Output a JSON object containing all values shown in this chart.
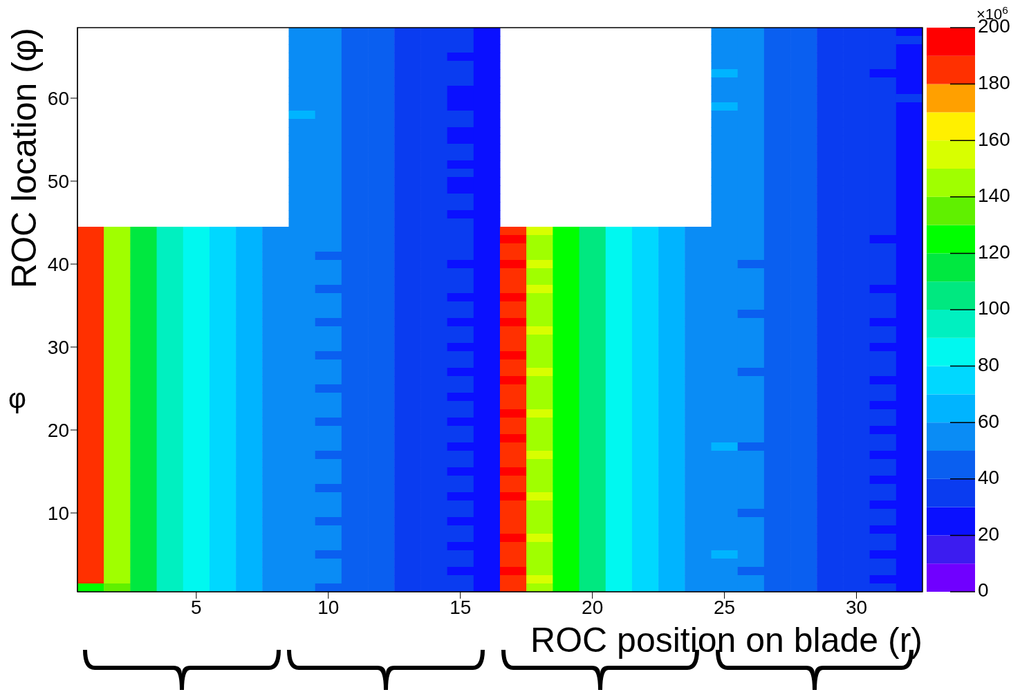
{
  "chart_data": {
    "type": "heatmap",
    "xlabel": "ROC position on blade (r)",
    "ylabel": "ROC location (φ)",
    "clabel": "×10$^{6}$",
    "annotations": [
      "φ"
    ],
    "clim": [
      0,
      200
    ],
    "cticks": [
      0,
      20,
      40,
      60,
      80,
      100,
      120,
      140,
      160,
      180,
      200
    ],
    "categories": [
      null,
      null,
      null,
      null,
      "5",
      null,
      null,
      null,
      null,
      "10",
      null,
      null,
      null,
      null,
      "15",
      null,
      null,
      null,
      null,
      "20",
      null,
      null,
      null,
      null,
      "25",
      null,
      null,
      null,
      null,
      "30",
      null,
      null
    ],
    "y_categories": [
      null,
      null,
      null,
      null,
      null,
      null,
      null,
      null,
      "60",
      null,
      null,
      null,
      null,
      null,
      null,
      null,
      null,
      null,
      "50",
      null,
      null,
      null,
      null,
      null,
      null,
      null,
      null,
      null,
      "40",
      null,
      null,
      null,
      null,
      null,
      null,
      null,
      null,
      null,
      "30",
      null,
      null,
      null,
      null,
      null,
      null,
      null,
      null,
      null,
      "20",
      null,
      null,
      null,
      null,
      null,
      null,
      null,
      null,
      null,
      "10",
      null,
      null,
      null,
      null,
      null,
      null,
      null,
      null,
      null
    ],
    "cells": [
      [
        null,
        null,
        null,
        null,
        null,
        null,
        null,
        null,
        52,
        52,
        46,
        43,
        36,
        33,
        31,
        22,
        null,
        null,
        null,
        null,
        null,
        null,
        null,
        null,
        53,
        50,
        46,
        42,
        36,
        33,
        31,
        29
      ],
      [
        null,
        null,
        null,
        null,
        null,
        null,
        null,
        null,
        53,
        51,
        47,
        44,
        38,
        34,
        30,
        22,
        null,
        null,
        null,
        null,
        null,
        null,
        null,
        null,
        54,
        52,
        47,
        43,
        37,
        34,
        32,
        31
      ],
      [
        null,
        null,
        null,
        null,
        null,
        null,
        null,
        null,
        54,
        50,
        48,
        45,
        39,
        35,
        31,
        23,
        null,
        null,
        null,
        null,
        null,
        null,
        null,
        null,
        55,
        51,
        48,
        44,
        36,
        33,
        30,
        29
      ],
      [
        null,
        null,
        null,
        null,
        null,
        null,
        null,
        null,
        53,
        51,
        47,
        44,
        37,
        34,
        28,
        21,
        null,
        null,
        null,
        null,
        null,
        null,
        null,
        null,
        53,
        50,
        47,
        42,
        37,
        34,
        31,
        28
      ],
      [
        null,
        null,
        null,
        null,
        null,
        null,
        null,
        null,
        52,
        52,
        46,
        43,
        38,
        33,
        30,
        22,
        null,
        null,
        null,
        null,
        null,
        null,
        null,
        null,
        54,
        51,
        46,
        43,
        36,
        33,
        30,
        27
      ],
      [
        null,
        null,
        null,
        null,
        null,
        null,
        null,
        null,
        55,
        50,
        47,
        44,
        37,
        35,
        31,
        23,
        null,
        null,
        null,
        null,
        null,
        null,
        null,
        null,
        62,
        52,
        47,
        44,
        37,
        34,
        29,
        26
      ],
      [
        null,
        null,
        null,
        null,
        null,
        null,
        null,
        null,
        53,
        51,
        48,
        45,
        38,
        34,
        30,
        22,
        null,
        null,
        null,
        null,
        null,
        null,
        null,
        null,
        54,
        50,
        48,
        42,
        36,
        34,
        31,
        28
      ],
      [
        null,
        null,
        null,
        null,
        null,
        null,
        null,
        null,
        52,
        50,
        46,
        43,
        39,
        33,
        28,
        21,
        null,
        null,
        null,
        null,
        null,
        null,
        null,
        null,
        53,
        51,
        47,
        43,
        37,
        33,
        30,
        29
      ],
      [
        null,
        null,
        null,
        null,
        null,
        null,
        null,
        null,
        54,
        52,
        47,
        44,
        37,
        34,
        29,
        22,
        null,
        null,
        null,
        null,
        null,
        null,
        null,
        null,
        55,
        50,
        46,
        44,
        36,
        34,
        31,
        31
      ],
      [
        null,
        null,
        null,
        null,
        null,
        null,
        null,
        null,
        53,
        51,
        48,
        45,
        38,
        32,
        28,
        23,
        null,
        null,
        null,
        null,
        null,
        null,
        null,
        null,
        62,
        52,
        47,
        43,
        37,
        33,
        30,
        28
      ],
      [
        null,
        null,
        null,
        null,
        null,
        null,
        null,
        null,
        61,
        50,
        47,
        43,
        37,
        34,
        30,
        22,
        null,
        null,
        null,
        null,
        null,
        null,
        null,
        null,
        54,
        51,
        48,
        42,
        36,
        34,
        31,
        29
      ],
      [
        null,
        null,
        null,
        null,
        null,
        null,
        null,
        null,
        52,
        51,
        46,
        44,
        38,
        33,
        31,
        23,
        null,
        null,
        null,
        null,
        null,
        null,
        null,
        null,
        53,
        50,
        47,
        44,
        37,
        33,
        30,
        28
      ],
      [
        null,
        null,
        null,
        null,
        null,
        null,
        null,
        null,
        54,
        52,
        48,
        45,
        37,
        35,
        29,
        22,
        null,
        null,
        null,
        null,
        null,
        null,
        null,
        null,
        55,
        52,
        46,
        43,
        36,
        34,
        32,
        29
      ],
      [
        null,
        null,
        null,
        null,
        null,
        null,
        null,
        null,
        53,
        50,
        47,
        43,
        39,
        34,
        28,
        21,
        null,
        null,
        null,
        null,
        null,
        null,
        null,
        null,
        54,
        51,
        47,
        42,
        37,
        33,
        30,
        27
      ],
      [
        null,
        null,
        null,
        null,
        null,
        null,
        null,
        null,
        52,
        51,
        46,
        44,
        38,
        33,
        30,
        22,
        null,
        null,
        null,
        null,
        null,
        null,
        null,
        null,
        53,
        50,
        48,
        44,
        36,
        34,
        31,
        29
      ],
      [
        null,
        null,
        null,
        null,
        null,
        null,
        null,
        null,
        54,
        52,
        48,
        45,
        37,
        34,
        31,
        23,
        null,
        null,
        null,
        null,
        null,
        null,
        null,
        null,
        55,
        51,
        47,
        43,
        37,
        33,
        30,
        28
      ],
      [
        null,
        null,
        null,
        null,
        null,
        null,
        null,
        null,
        53,
        50,
        47,
        43,
        38,
        35,
        29,
        22,
        null,
        null,
        null,
        null,
        null,
        null,
        null,
        null,
        54,
        52,
        46,
        42,
        36,
        34,
        31,
        26
      ],
      [
        null,
        null,
        null,
        null,
        null,
        null,
        null,
        null,
        52,
        51,
        46,
        44,
        37,
        33,
        30,
        21,
        null,
        null,
        null,
        null,
        null,
        null,
        null,
        null,
        53,
        50,
        47,
        44,
        37,
        33,
        30,
        29
      ],
      [
        null,
        null,
        null,
        null,
        null,
        null,
        null,
        null,
        54,
        52,
        48,
        45,
        39,
        34,
        28,
        22,
        null,
        null,
        null,
        null,
        null,
        null,
        null,
        null,
        55,
        51,
        48,
        43,
        36,
        34,
        32,
        28
      ],
      [
        null,
        null,
        null,
        null,
        null,
        null,
        null,
        null,
        53,
        50,
        47,
        43,
        38,
        32,
        29,
        23,
        null,
        null,
        null,
        null,
        null,
        null,
        null,
        null,
        54,
        50,
        47,
        42,
        37,
        33,
        30,
        29
      ],
      [
        null,
        null,
        null,
        null,
        null,
        null,
        null,
        null,
        52,
        51,
        46,
        44,
        37,
        34,
        31,
        22,
        null,
        null,
        null,
        null,
        null,
        null,
        null,
        null,
        53,
        52,
        46,
        44,
        36,
        34,
        31,
        28
      ],
      [
        null,
        null,
        null,
        null,
        null,
        null,
        null,
        null,
        54,
        52,
        48,
        45,
        38,
        33,
        30,
        21,
        null,
        null,
        null,
        null,
        null,
        null,
        null,
        null,
        55,
        51,
        47,
        43,
        37,
        33,
        30,
        27
      ],
      [
        null,
        null,
        null,
        null,
        null,
        null,
        null,
        null,
        53,
        50,
        47,
        43,
        39,
        35,
        29,
        22,
        null,
        null,
        null,
        null,
        null,
        null,
        null,
        null,
        54,
        50,
        48,
        42,
        36,
        34,
        31,
        29
      ],
      [
        null,
        null,
        null,
        null,
        null,
        null,
        null,
        null,
        58,
        51,
        46,
        44,
        37,
        34,
        30,
        23,
        null,
        null,
        null,
        null,
        null,
        null,
        null,
        null,
        53,
        51,
        47,
        44,
        37,
        33,
        30,
        28
      ],
      [
        183,
        142,
        112,
        95,
        82,
        72,
        62,
        55,
        53,
        50,
        47,
        43,
        37,
        33,
        30,
        24,
        186,
        150,
        122,
        104,
        86,
        76,
        66,
        58,
        54,
        50,
        46,
        41,
        36,
        33,
        30,
        26
      ],
      [
        186,
        146,
        110,
        96,
        80,
        71,
        63,
        54,
        52,
        51,
        46,
        42,
        38,
        34,
        31,
        23,
        190,
        146,
        120,
        105,
        87,
        75,
        65,
        57,
        53,
        51,
        47,
        42,
        35,
        34,
        29,
        25
      ],
      [
        184,
        148,
        113,
        94,
        83,
        73,
        61,
        55,
        51,
        50,
        45,
        41,
        37,
        33,
        30,
        22,
        183,
        149,
        123,
        103,
        85,
        77,
        66,
        58,
        55,
        50,
        46,
        40,
        36,
        33,
        30,
        27
      ],
      [
        187,
        144,
        111,
        95,
        81,
        72,
        62,
        56,
        52,
        49,
        46,
        42,
        36,
        34,
        31,
        24,
        188,
        147,
        121,
        104,
        86,
        76,
        64,
        59,
        54,
        52,
        45,
        41,
        37,
        32,
        31,
        26
      ],
      [
        185,
        146,
        112,
        97,
        82,
        70,
        63,
        54,
        53,
        50,
        47,
        43,
        37,
        33,
        29,
        23,
        192,
        150,
        122,
        106,
        84,
        75,
        66,
        57,
        53,
        49,
        46,
        42,
        36,
        33,
        30,
        25
      ],
      [
        182,
        143,
        114,
        95,
        84,
        72,
        61,
        55,
        52,
        51,
        45,
        42,
        38,
        35,
        30,
        22,
        185,
        148,
        120,
        104,
        87,
        77,
        65,
        58,
        54,
        50,
        47,
        41,
        35,
        34,
        31,
        26
      ],
      [
        188,
        147,
        110,
        94,
        81,
        73,
        62,
        56,
        51,
        50,
        46,
        41,
        37,
        33,
        31,
        24,
        189,
        146,
        123,
        103,
        86,
        74,
        66,
        57,
        55,
        51,
        46,
        40,
        36,
        32,
        30,
        27
      ],
      [
        184,
        145,
        112,
        96,
        80,
        71,
        63,
        54,
        53,
        49,
        47,
        43,
        36,
        34,
        30,
        23,
        187,
        151,
        121,
        105,
        85,
        76,
        64,
        59,
        53,
        50,
        45,
        42,
        37,
        33,
        29,
        25
      ],
      [
        186,
        149,
        111,
        95,
        83,
        72,
        61,
        55,
        52,
        50,
        46,
        42,
        38,
        33,
        28,
        22,
        191,
        147,
        122,
        104,
        86,
        75,
        65,
        58,
        54,
        52,
        47,
        41,
        36,
        34,
        30,
        26
      ],
      [
        183,
        144,
        113,
        97,
        82,
        70,
        62,
        56,
        51,
        51,
        45,
        41,
        37,
        35,
        31,
        24,
        184,
        149,
        120,
        106,
        87,
        77,
        66,
        57,
        53,
        50,
        46,
        40,
        35,
        33,
        31,
        27
      ],
      [
        187,
        146,
        110,
        94,
        81,
        73,
        63,
        54,
        59,
        50,
        47,
        43,
        36,
        33,
        30,
        23,
        188,
        148,
        123,
        103,
        85,
        76,
        64,
        58,
        55,
        49,
        45,
        42,
        37,
        32,
        30,
        25
      ],
      [
        185,
        147,
        112,
        96,
        84,
        71,
        61,
        55,
        52,
        49,
        46,
        42,
        38,
        34,
        29,
        22,
        190,
        146,
        121,
        104,
        86,
        74,
        65,
        59,
        54,
        51,
        47,
        41,
        36,
        33,
        29,
        26
      ],
      [
        184,
        143,
        114,
        95,
        80,
        72,
        62,
        56,
        53,
        50,
        45,
        41,
        37,
        33,
        31,
        24,
        186,
        150,
        122,
        105,
        84,
        75,
        66,
        57,
        53,
        50,
        46,
        40,
        35,
        34,
        31,
        27
      ],
      [
        188,
        148,
        111,
        97,
        82,
        70,
        63,
        54,
        51,
        51,
        47,
        43,
        36,
        35,
        30,
        23,
        183,
        147,
        120,
        103,
        87,
        77,
        64,
        58,
        55,
        52,
        45,
        42,
        37,
        32,
        30,
        25
      ],
      [
        182,
        145,
        112,
        94,
        83,
        73,
        61,
        55,
        52,
        50,
        46,
        42,
        38,
        33,
        28,
        22,
        189,
        149,
        123,
        104,
        86,
        76,
        65,
        59,
        54,
        50,
        47,
        41,
        36,
        33,
        29,
        26
      ],
      [
        186,
        146,
        113,
        96,
        81,
        71,
        62,
        56,
        53,
        49,
        45,
        41,
        37,
        34,
        31,
        24,
        191,
        146,
        121,
        106,
        85,
        74,
        66,
        57,
        53,
        51,
        46,
        40,
        35,
        34,
        30,
        27
      ],
      [
        185,
        144,
        110,
        95,
        80,
        72,
        63,
        54,
        52,
        50,
        47,
        43,
        36,
        33,
        30,
        23,
        185,
        148,
        122,
        103,
        86,
        75,
        64,
        58,
        54,
        50,
        45,
        42,
        37,
        32,
        31,
        25
      ],
      [
        187,
        147,
        112,
        97,
        84,
        70,
        61,
        55,
        51,
        51,
        46,
        42,
        38,
        35,
        29,
        22,
        188,
        150,
        120,
        105,
        87,
        77,
        65,
        59,
        55,
        49,
        47,
        41,
        36,
        33,
        30,
        26
      ],
      [
        183,
        145,
        114,
        94,
        82,
        73,
        62,
        56,
        53,
        50,
        45,
        41,
        37,
        33,
        31,
        24,
        190,
        147,
        123,
        104,
        84,
        76,
        66,
        57,
        53,
        52,
        46,
        40,
        35,
        34,
        29,
        27
      ],
      [
        186,
        143,
        111,
        96,
        81,
        71,
        63,
        54,
        52,
        49,
        47,
        43,
        36,
        34,
        30,
        23,
        184,
        149,
        121,
        103,
        86,
        74,
        64,
        58,
        54,
        50,
        45,
        42,
        37,
        33,
        31,
        25
      ],
      [
        184,
        148,
        113,
        95,
        83,
        72,
        61,
        55,
        58,
        50,
        46,
        42,
        38,
        33,
        28,
        22,
        189,
        146,
        122,
        106,
        85,
        75,
        65,
        59,
        55,
        51,
        47,
        41,
        36,
        32,
        30,
        26
      ],
      [
        188,
        146,
        110,
        97,
        80,
        70,
        62,
        56,
        51,
        51,
        45,
        41,
        37,
        35,
        31,
        24,
        187,
        148,
        120,
        104,
        87,
        77,
        66,
        57,
        53,
        50,
        46,
        40,
        35,
        33,
        29,
        27
      ],
      [
        185,
        144,
        112,
        94,
        82,
        73,
        63,
        54,
        53,
        50,
        47,
        43,
        36,
        33,
        30,
        23,
        191,
        150,
        123,
        105,
        86,
        76,
        64,
        58,
        54,
        52,
        45,
        42,
        37,
        34,
        31,
        25
      ],
      [
        182,
        147,
        114,
        96,
        84,
        71,
        61,
        55,
        52,
        49,
        46,
        42,
        38,
        34,
        29,
        22,
        183,
        147,
        121,
        103,
        84,
        74,
        65,
        59,
        55,
        50,
        47,
        41,
        36,
        33,
        30,
        26
      ],
      [
        187,
        145,
        111,
        95,
        81,
        72,
        62,
        56,
        51,
        50,
        45,
        41,
        37,
        33,
        31,
        24,
        188,
        149,
        122,
        104,
        85,
        75,
        66,
        57,
        53,
        51,
        46,
        40,
        35,
        32,
        29,
        27
      ],
      [
        184,
        146,
        113,
        97,
        80,
        70,
        63,
        54,
        53,
        51,
        47,
        43,
        36,
        35,
        30,
        23,
        190,
        146,
        120,
        106,
        87,
        77,
        64,
        58,
        54,
        50,
        45,
        42,
        37,
        33,
        31,
        25
      ],
      [
        186,
        143,
        110,
        94,
        83,
        73,
        61,
        55,
        52,
        50,
        46,
        42,
        38,
        33,
        28,
        22,
        185,
        148,
        123,
        103,
        86,
        76,
        65,
        59,
        62,
        49,
        47,
        41,
        36,
        34,
        30,
        26
      ],
      [
        185,
        148,
        112,
        96,
        82,
        71,
        62,
        56,
        51,
        49,
        45,
        41,
        37,
        34,
        31,
        24,
        189,
        150,
        121,
        105,
        84,
        74,
        66,
        57,
        55,
        52,
        46,
        40,
        35,
        32,
        29,
        27
      ],
      [
        183,
        144,
        114,
        95,
        81,
        72,
        63,
        54,
        53,
        50,
        47,
        43,
        36,
        33,
        30,
        23,
        187,
        147,
        122,
        104,
        86,
        75,
        64,
        58,
        54,
        50,
        45,
        42,
        37,
        33,
        31,
        25
      ],
      [
        188,
        147,
        111,
        97,
        84,
        70,
        61,
        55,
        52,
        51,
        46,
        42,
        38,
        35,
        29,
        22,
        191,
        149,
        120,
        103,
        87,
        77,
        65,
        59,
        53,
        51,
        47,
        41,
        36,
        34,
        30,
        26
      ],
      [
        184,
        145,
        113,
        94,
        80,
        73,
        62,
        56,
        58,
        50,
        45,
        41,
        37,
        33,
        31,
        24,
        184,
        146,
        123,
        106,
        85,
        76,
        66,
        57,
        55,
        50,
        46,
        40,
        35,
        33,
        29,
        27
      ],
      [
        187,
        146,
        110,
        96,
        83,
        71,
        63,
        54,
        51,
        49,
        47,
        43,
        36,
        34,
        30,
        23,
        188,
        148,
        121,
        104,
        86,
        74,
        64,
        58,
        54,
        52,
        45,
        42,
        37,
        32,
        31,
        25
      ],
      [
        185,
        143,
        112,
        95,
        82,
        72,
        61,
        55,
        53,
        50,
        46,
        42,
        38,
        33,
        28,
        22,
        190,
        150,
        122,
        105,
        84,
        75,
        65,
        59,
        53,
        50,
        47,
        41,
        36,
        33,
        30,
        26
      ],
      [
        182,
        148,
        114,
        97,
        81,
        70,
        62,
        56,
        52,
        51,
        45,
        41,
        37,
        35,
        31,
        24,
        186,
        147,
        120,
        103,
        87,
        77,
        66,
        57,
        55,
        51,
        46,
        40,
        35,
        34,
        29,
        27
      ],
      [
        186,
        144,
        111,
        94,
        80,
        73,
        63,
        54,
        51,
        50,
        47,
        43,
        36,
        33,
        30,
        23,
        189,
        149,
        123,
        104,
        86,
        76,
        64,
        58,
        54,
        49,
        45,
        42,
        37,
        32,
        31,
        25
      ],
      [
        184,
        147,
        113,
        96,
        84,
        71,
        61,
        55,
        53,
        49,
        46,
        42,
        38,
        34,
        29,
        22,
        183,
        146,
        121,
        106,
        85,
        74,
        65,
        59,
        53,
        52,
        47,
        41,
        36,
        33,
        30,
        26
      ],
      [
        188,
        145,
        110,
        95,
        82,
        72,
        62,
        56,
        52,
        50,
        45,
        41,
        37,
        33,
        31,
        24,
        188,
        148,
        122,
        103,
        84,
        75,
        66,
        57,
        55,
        50,
        46,
        40,
        35,
        34,
        29,
        27
      ],
      [
        185,
        146,
        112,
        97,
        81,
        70,
        63,
        54,
        51,
        51,
        47,
        43,
        36,
        35,
        30,
        23,
        191,
        150,
        120,
        105,
        87,
        77,
        64,
        58,
        54,
        51,
        45,
        42,
        37,
        32,
        31,
        25
      ],
      [
        183,
        143,
        114,
        94,
        83,
        73,
        61,
        55,
        53,
        50,
        46,
        42,
        38,
        33,
        28,
        22,
        185,
        147,
        123,
        104,
        86,
        76,
        65,
        59,
        53,
        50,
        47,
        41,
        36,
        33,
        30,
        26
      ],
      [
        187,
        148,
        111,
        96,
        80,
        71,
        62,
        56,
        52,
        49,
        45,
        41,
        37,
        34,
        31,
        24,
        189,
        149,
        121,
        103,
        85,
        74,
        66,
        57,
        60,
        52,
        46,
        40,
        35,
        34,
        29,
        27
      ],
      [
        184,
        144,
        113,
        95,
        82,
        72,
        63,
        54,
        51,
        50,
        47,
        43,
        36,
        33,
        30,
        23,
        187,
        146,
        122,
        106,
        87,
        75,
        64,
        58,
        54,
        50,
        45,
        42,
        37,
        32,
        31,
        25
      ],
      [
        186,
        147,
        110,
        97,
        84,
        70,
        61,
        55,
        53,
        51,
        46,
        42,
        38,
        35,
        29,
        22,
        190,
        148,
        120,
        104,
        86,
        77,
        65,
        59,
        55,
        49,
        47,
        41,
        36,
        33,
        30,
        26
      ],
      [
        185,
        145,
        112,
        94,
        81,
        73,
        62,
        56,
        52,
        50,
        45,
        41,
        37,
        33,
        31,
        24,
        184,
        150,
        123,
        105,
        84,
        76,
        66,
        57,
        53,
        51,
        46,
        40,
        35,
        34,
        29,
        27
      ],
      [
        120,
        132,
        110,
        96,
        83,
        71,
        63,
        54,
        51,
        49,
        47,
        43,
        36,
        34,
        30,
        23,
        188,
        147,
        121,
        103,
        85,
        74,
        64,
        58,
        54,
        52,
        45,
        42,
        37,
        32,
        31,
        25
      ]
    ]
  }
}
